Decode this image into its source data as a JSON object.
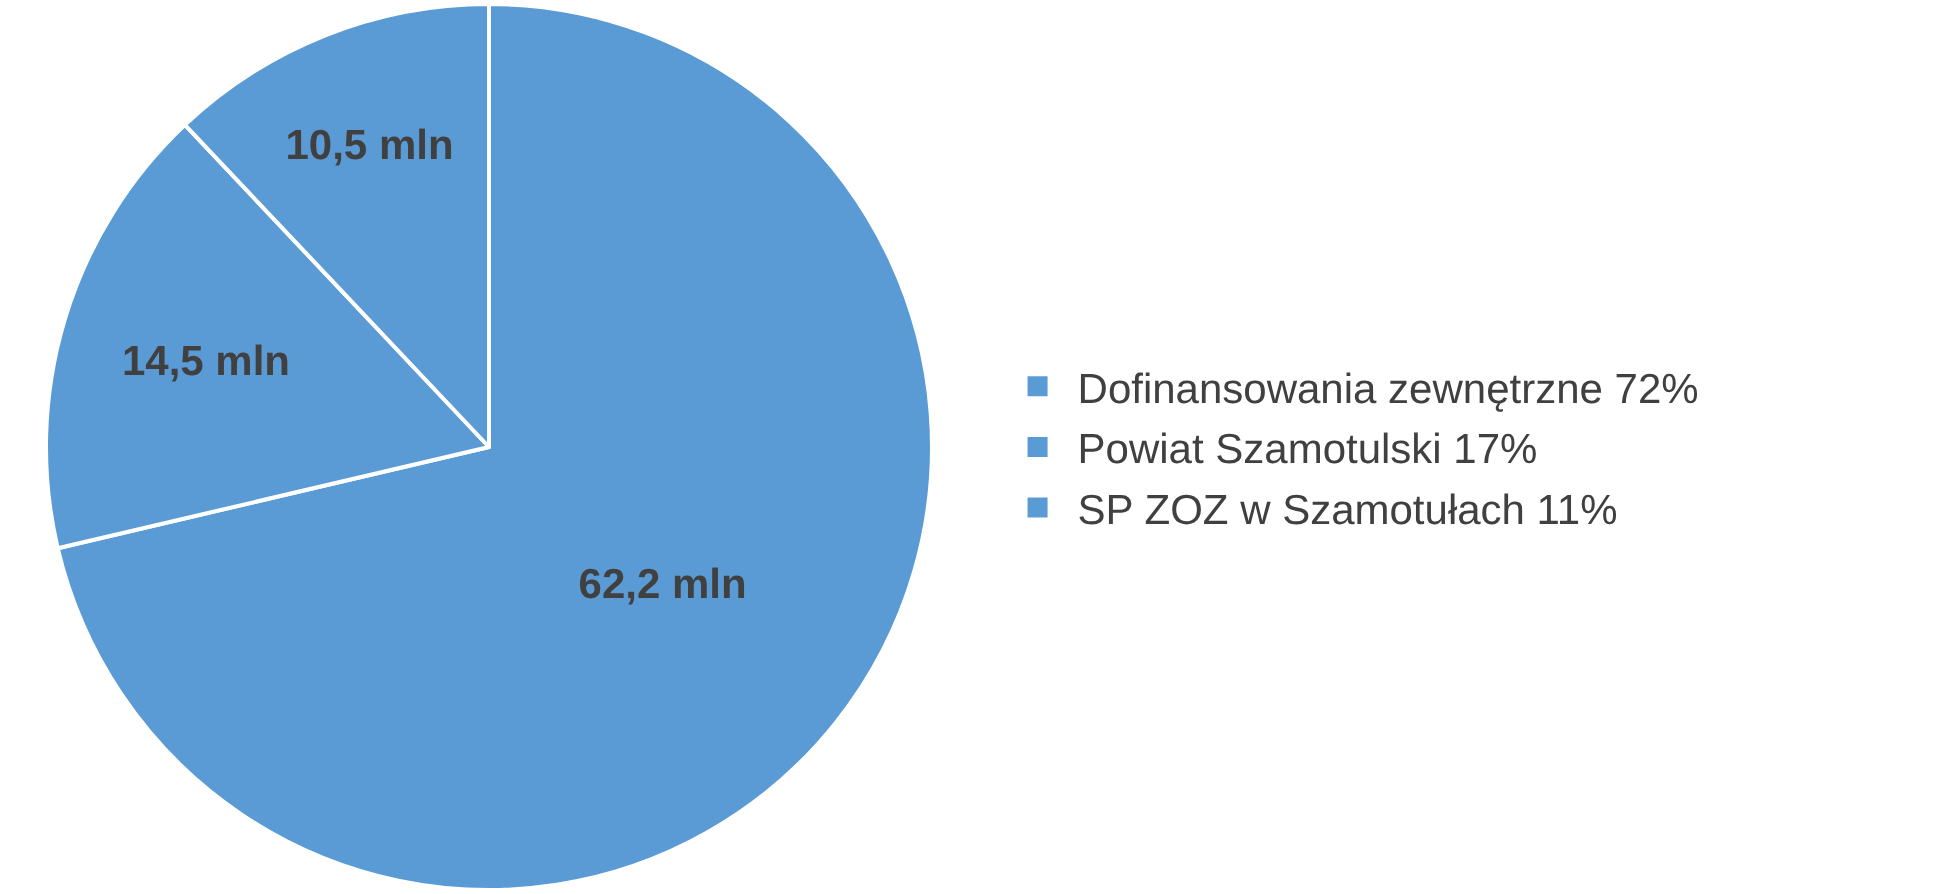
{
  "chart_data": {
    "type": "pie",
    "categories": [
      "Dofinansowania zewnętrzne 72%",
      "Powiat Szamotulski 17%",
      "SP ZOZ w Szamotułach 11%"
    ],
    "values": [
      62.2,
      14.5,
      10.5
    ],
    "value_labels": [
      "62,2 mln",
      "14,5 mln",
      "10,5 mln"
    ],
    "colors": [
      "#5b9bd5",
      "#5b9bd5",
      "#5b9bd5"
    ],
    "legend": "right"
  }
}
